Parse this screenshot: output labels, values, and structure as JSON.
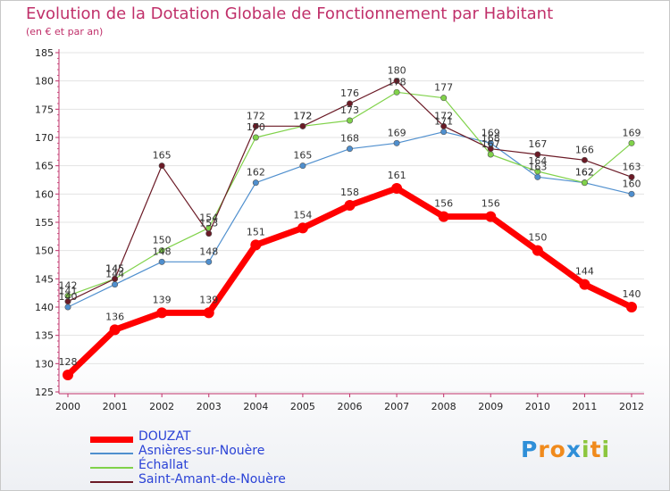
{
  "chart_data": {
    "type": "line",
    "title": "Evolution de la Dotation Globale de Fonctionnement par Habitant",
    "subtitle": "(en € et par an)",
    "xlabel": "",
    "ylabel": "",
    "categories": [
      "2000",
      "2001",
      "2002",
      "2003",
      "2004",
      "2005",
      "2006",
      "2007",
      "2008",
      "2009",
      "2010",
      "2011",
      "2012"
    ],
    "ylim": [
      125,
      185
    ],
    "yticks": [
      125,
      130,
      135,
      140,
      145,
      150,
      155,
      160,
      165,
      170,
      175,
      180,
      185
    ],
    "grid": "horizontal",
    "legend_position": "bottom-left",
    "series": [
      {
        "name": "DOUZAT",
        "color": "#ff0000",
        "values": [
          128,
          136,
          139,
          139,
          151,
          154,
          158,
          161,
          156,
          156,
          150,
          144,
          140
        ]
      },
      {
        "name": "Asnières-sur-Nouère",
        "color": "#4f8fce",
        "values": [
          140,
          144,
          148,
          148,
          162,
          165,
          168,
          169,
          171,
          169,
          163,
          162,
          160
        ]
      },
      {
        "name": "Échallat",
        "color": "#80d24a",
        "values": [
          142,
          145,
          150,
          154,
          170,
          172,
          173,
          178,
          177,
          167,
          164,
          162,
          169
        ]
      },
      {
        "name": "Saint-Amant-de-Nouère",
        "color": "#6b1a26",
        "values": [
          141,
          145,
          165,
          153,
          172,
          172,
          176,
          180,
          172,
          168,
          167,
          166,
          163
        ]
      }
    ]
  },
  "brand": {
    "text": "Proxiti",
    "letters": [
      "P",
      "r",
      "o",
      "x",
      "i",
      "t",
      "i"
    ],
    "colors": [
      "#2f8fd8",
      "#f08a1c",
      "#f08a1c",
      "#2f8fd8",
      "#8cc63e",
      "#f08a1c",
      "#8cc63e"
    ]
  }
}
